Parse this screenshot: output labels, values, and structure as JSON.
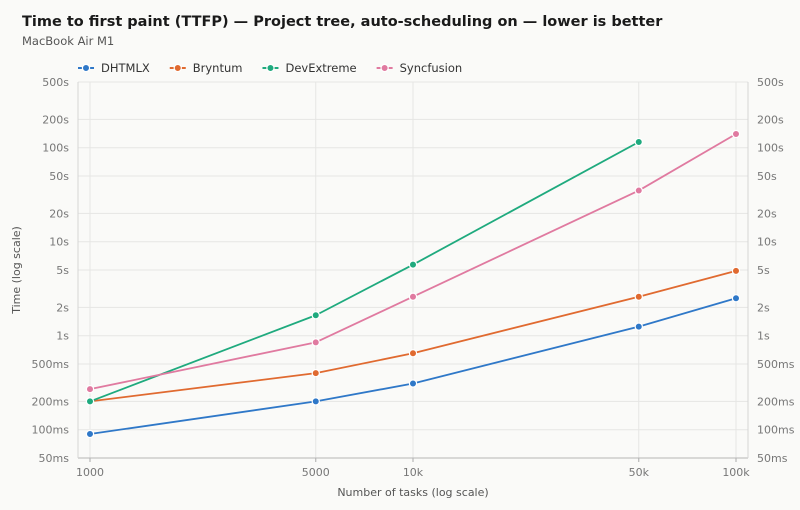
{
  "chart_data": {
    "type": "line",
    "title": "Time to first paint (TTFP) — Project tree, auto-scheduling on — lower is better",
    "subtitle": "MacBook Air M1",
    "xlabel": "Number of tasks (log scale)",
    "ylabel": "Time (log scale)",
    "x_scale": "log",
    "y_scale": "log",
    "x": [
      1000,
      5000,
      10000,
      50000,
      100000
    ],
    "x_tick_labels": [
      "1000",
      "5000",
      "10k",
      "50k",
      "100k"
    ],
    "y_ticks": [
      0.05,
      0.1,
      0.2,
      0.5,
      1,
      2,
      5,
      10,
      20,
      50,
      100,
      200,
      500
    ],
    "y_tick_labels": [
      "50ms",
      "100ms",
      "200ms",
      "500ms",
      "1s",
      "2s",
      "5s",
      "10s",
      "20s",
      "50s",
      "100s",
      "200s",
      "500s"
    ],
    "ylim": [
      0.05,
      500
    ],
    "y_unit": "s",
    "grid": true,
    "legend_position": "top-left",
    "series": [
      {
        "name": "DHTMLX",
        "color": "#2f78c8",
        "values": [
          0.09,
          0.2,
          0.31,
          1.25,
          2.5
        ]
      },
      {
        "name": "Bryntum",
        "color": "#e06a30",
        "values": [
          0.2,
          0.4,
          0.65,
          2.6,
          4.9
        ]
      },
      {
        "name": "DevExtreme",
        "color": "#1faa7e",
        "values": [
          0.2,
          1.65,
          5.7,
          115,
          null
        ]
      },
      {
        "name": "Syncfusion",
        "color": "#e07aa0",
        "values": [
          0.27,
          0.85,
          2.6,
          35,
          140
        ]
      }
    ]
  }
}
